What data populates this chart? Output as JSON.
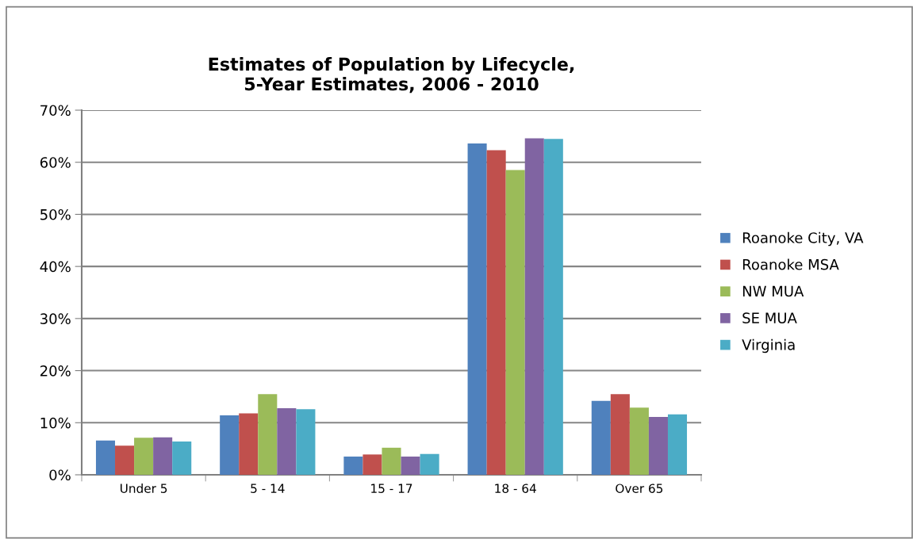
{
  "chart_data": {
    "type": "bar",
    "title": "Estimates of Population by Lifecycle,\n5-Year Estimates, 2006 - 2010",
    "categories": [
      "Under 5",
      "5 - 14",
      "15 - 17",
      "18 - 64",
      "Over 65"
    ],
    "series": [
      {
        "name": "Roanoke City, VA",
        "color": "#4f81bd",
        "values": [
          6.6,
          11.4,
          3.5,
          63.6,
          14.2
        ]
      },
      {
        "name": "Roanoke MSA",
        "color": "#c0504d",
        "values": [
          5.6,
          11.8,
          3.9,
          62.3,
          15.5
        ]
      },
      {
        "name": "NW MUA",
        "color": "#9bbb59",
        "values": [
          7.1,
          15.5,
          5.2,
          58.5,
          12.9
        ]
      },
      {
        "name": "SE MUA",
        "color": "#8064a2",
        "values": [
          7.2,
          12.8,
          3.5,
          64.6,
          11.1
        ]
      },
      {
        "name": "Virginia",
        "color": "#4bacc6",
        "values": [
          6.4,
          12.6,
          4.0,
          64.5,
          11.6
        ]
      }
    ],
    "ylim": [
      0,
      70
    ],
    "yticks": [
      {
        "value": 0,
        "label": "0%"
      },
      {
        "value": 10,
        "label": "10%"
      },
      {
        "value": 20,
        "label": "20%"
      },
      {
        "value": 30,
        "label": "30%"
      },
      {
        "value": 40,
        "label": "40%"
      },
      {
        "value": 50,
        "label": "50%"
      },
      {
        "value": 60,
        "label": "60%"
      },
      {
        "value": 70,
        "label": "70%"
      }
    ],
    "grid": "y",
    "legend": "right"
  }
}
